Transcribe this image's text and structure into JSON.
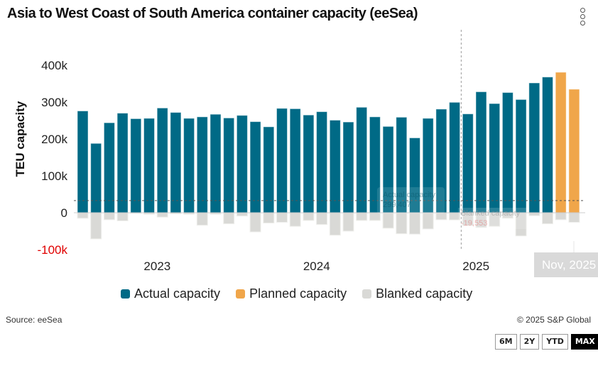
{
  "header": {
    "title": "Asia to West Coast of South America container capacity (eeSea)",
    "menu_icon": "kebab-menu-icon"
  },
  "chart_data": {
    "type": "bar",
    "title": "Asia to West Coast of South America container capacity (eeSea)",
    "xlabel": "",
    "ylabel": "TEU capacity",
    "ylim": [
      -100000,
      400000
    ],
    "y_ticks": [
      {
        "value": 400000,
        "label": "400k"
      },
      {
        "value": 300000,
        "label": "300k"
      },
      {
        "value": 200000,
        "label": "200k"
      },
      {
        "value": 100000,
        "label": "100k"
      },
      {
        "value": 0,
        "label": "0"
      },
      {
        "value": -100000,
        "label": "-100k"
      }
    ],
    "x_ticks": [
      {
        "index": 5.5,
        "label": "2023"
      },
      {
        "index": 17.5,
        "label": "2024"
      },
      {
        "index": 29.5,
        "label": "2025"
      }
    ],
    "grid": false,
    "legend_position": "bottom",
    "series": [
      {
        "name": "Actual capacity",
        "color": "#006a86",
        "values": [
          276000,
          188000,
          244000,
          270000,
          255000,
          256000,
          284000,
          272000,
          256000,
          260000,
          267000,
          257000,
          264000,
          247000,
          233000,
          283000,
          282000,
          265000,
          274000,
          251000,
          246000,
          286000,
          260000,
          234000,
          259000,
          203000,
          256000,
          281000,
          299407,
          268000,
          328000,
          296000,
          326000,
          307000,
          352000,
          368000,
          null,
          null
        ]
      },
      {
        "name": "Planned capacity",
        "color": "#f0a64a",
        "values": [
          null,
          null,
          null,
          null,
          null,
          null,
          null,
          null,
          null,
          null,
          null,
          null,
          null,
          null,
          null,
          null,
          null,
          null,
          null,
          null,
          null,
          null,
          null,
          null,
          null,
          null,
          null,
          null,
          null,
          null,
          null,
          null,
          null,
          null,
          null,
          null,
          381000,
          335000
        ]
      },
      {
        "name": "Blanked capacity",
        "color": "#d9d9d6",
        "values": [
          -15000,
          -71000,
          -19000,
          -22000,
          -2000,
          -4000,
          -12000,
          -3000,
          -4000,
          -34000,
          -4000,
          -30000,
          -9000,
          -52000,
          -28000,
          -26000,
          -37000,
          -21000,
          -32000,
          -61000,
          -50000,
          -21000,
          -21000,
          -42000,
          -57000,
          -58000,
          -44000,
          -19000,
          -19553,
          -35000,
          -40000,
          -37000,
          -15000,
          -63000,
          -8000,
          -30000,
          -19000,
          -26000
        ]
      }
    ],
    "reference_line": {
      "style": "dashed",
      "value": 33000
    },
    "current_marker_index": 28.5,
    "tooltips": {
      "actual": {
        "label": "Actual capacity",
        "value": "299,407"
      },
      "blanked": {
        "label": "Blanked capacity",
        "value": "-19,553"
      },
      "date": "Nov, 2025"
    }
  },
  "legend": [
    {
      "label": "Actual capacity",
      "color": "#006a86"
    },
    {
      "label": "Planned capacity",
      "color": "#f0a64a"
    },
    {
      "label": "Blanked capacity",
      "color": "#d9d9d6"
    }
  ],
  "footer": {
    "source": "Source: eeSea",
    "copyright": "© 2025 S&P Global"
  },
  "range_buttons": [
    {
      "label": "6M",
      "active": false
    },
    {
      "label": "2Y",
      "active": false
    },
    {
      "label": "YTD",
      "active": false
    },
    {
      "label": "MAX",
      "active": true
    }
  ]
}
